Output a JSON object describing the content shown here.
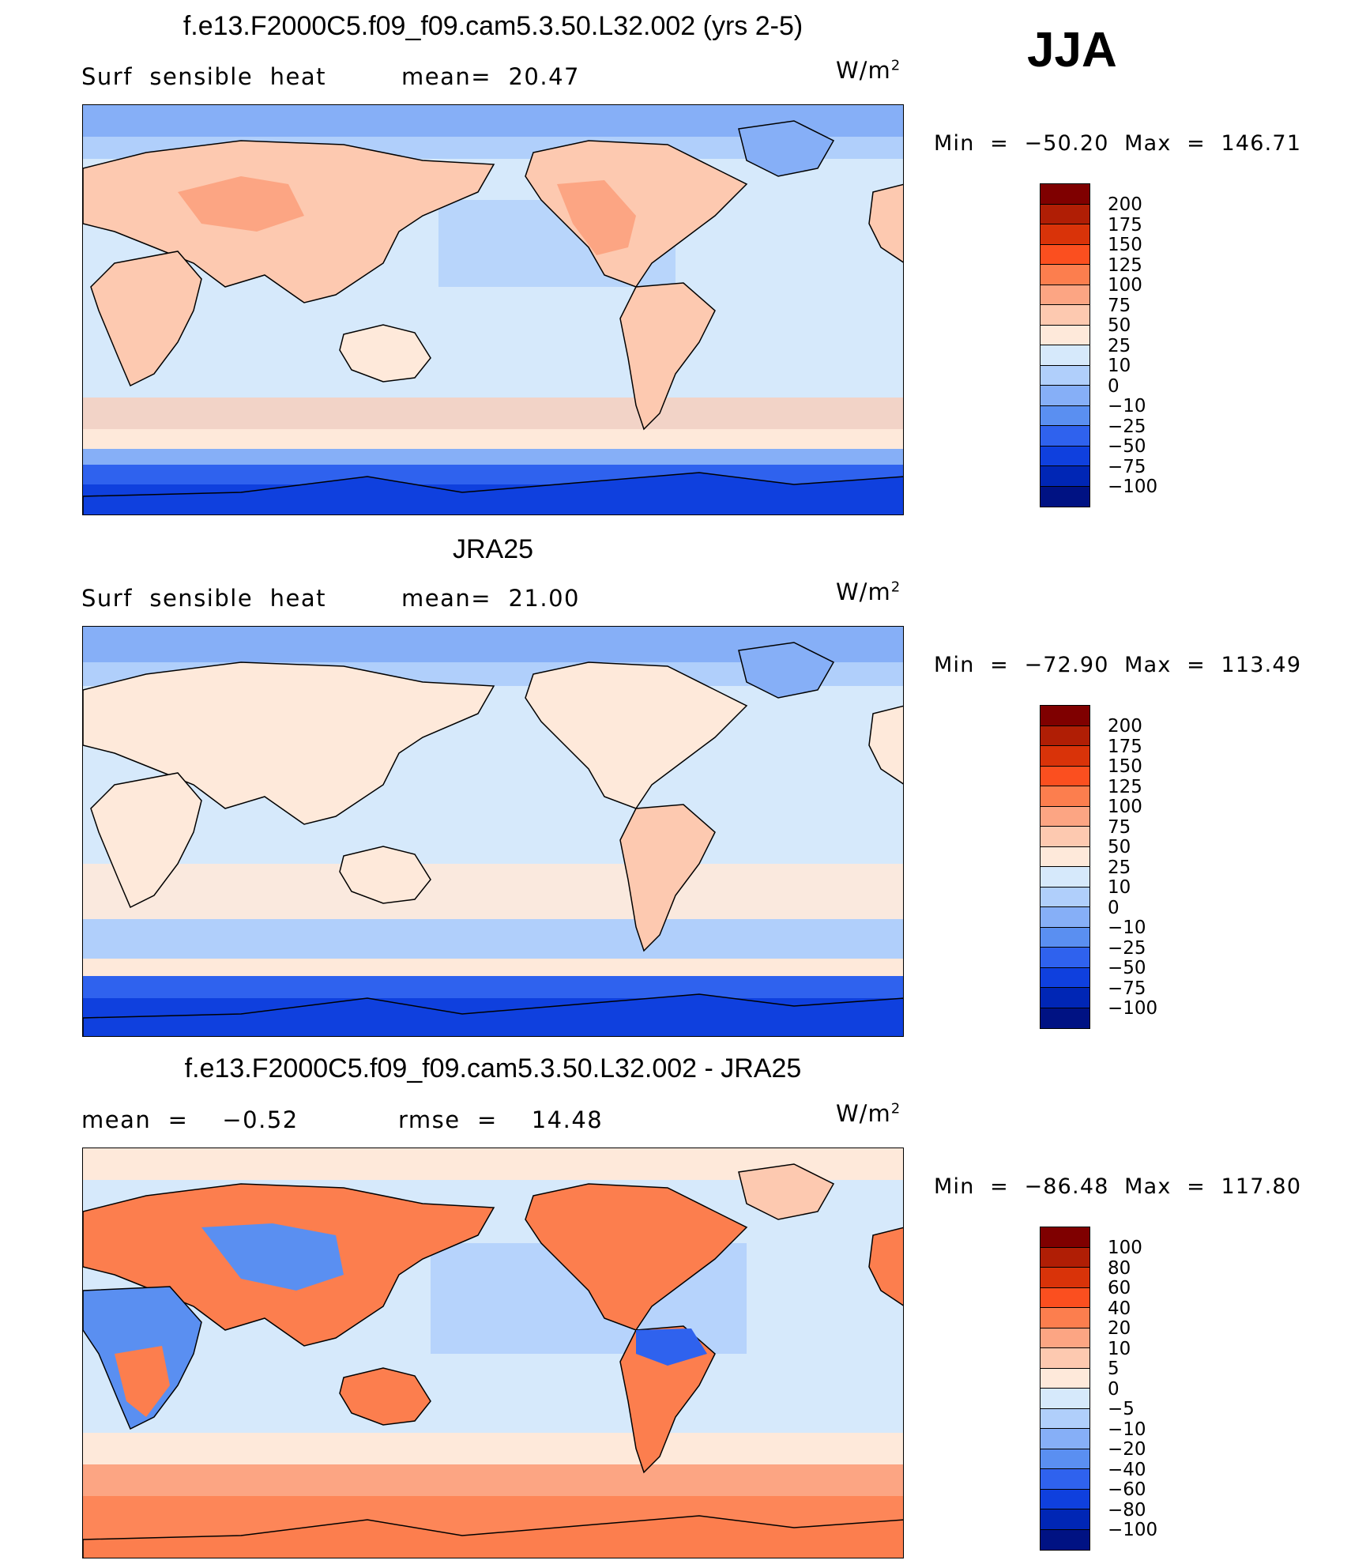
{
  "season": "JJA",
  "panels": [
    {
      "title": "f.e13.F2000C5.f09_f09.cam5.3.50.L32.002 (yrs 2-5)",
      "left_label": "Surf  sensible  heat",
      "mid_label": "mean=  20.47",
      "unit": "W/m",
      "unit_sup": "2",
      "minmax": "Min  =  −50.20  Max  =  146.71",
      "levels": [
        "200",
        "175",
        "150",
        "125",
        "100",
        "75",
        "50",
        "25",
        "10",
        "0",
        "−10",
        "−25",
        "−50",
        "−75",
        "−100"
      ]
    },
    {
      "title": "JRA25",
      "left_label": "Surf  sensible  heat",
      "mid_label": "mean=  21.00",
      "unit": "W/m",
      "unit_sup": "2",
      "minmax": "Min  =  −72.90  Max  =  113.49",
      "levels": [
        "200",
        "175",
        "150",
        "125",
        "100",
        "75",
        "50",
        "25",
        "10",
        "0",
        "−10",
        "−25",
        "−50",
        "−75",
        "−100"
      ]
    },
    {
      "title": "f.e13.F2000C5.f09_f09.cam5.3.50.L32.002 - JRA25",
      "left_label": "mean  =    −0.52",
      "mid_label": "rmse  =    14.48",
      "unit": "W/m",
      "unit_sup": "2",
      "minmax": "Min  =  −86.48  Max  =  117.80",
      "levels": [
        "100",
        "80",
        "60",
        "40",
        "20",
        "10",
        "5",
        "0",
        "−5",
        "−10",
        "−20",
        "−40",
        "−60",
        "−80",
        "−100"
      ]
    }
  ],
  "colors": {
    "scale": [
      "#7f0000",
      "#b01e05",
      "#d93309",
      "#fb4f1f",
      "#fc7e4e",
      "#fca583",
      "#fdc9b0",
      "#fee9da",
      "#d6e9fb",
      "#b0cffb",
      "#86aff7",
      "#5a8ff1",
      "#2f62ee",
      "#0f40de",
      "#0026b5",
      "#001283"
    ]
  }
}
